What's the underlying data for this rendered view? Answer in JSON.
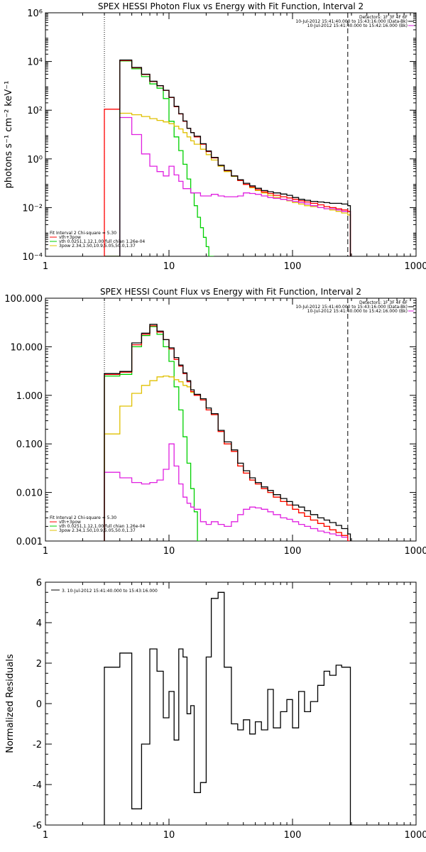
{
  "chart_data": [
    {
      "type": "line",
      "title": "SPEX HESSI Photon Flux vs Energy with Fit Function, Interval 2",
      "ylabel": "photons s⁻¹ cm⁻² keV⁻¹",
      "xlabel": "",
      "xscale": "log",
      "yscale": "log",
      "xlim": [
        1,
        1000
      ],
      "ylim": [
        0.0001,
        1000000
      ],
      "x_tick_labels": [
        "1",
        "10",
        "100",
        "1000"
      ],
      "y_tick_labels": [
        "10⁻⁴",
        "10⁻²",
        "10⁰",
        "10²",
        "10⁴",
        "10⁶"
      ],
      "vlines": [
        3,
        280
      ],
      "legend_top": [
        "Detectors: 1F 3F 4F 6F",
        "10-Jul-2012 15:41:40.000 to 15:43:16.000 (Data-Bk)",
        "10-Jul-2012 15:41:40.000 to 15:42:16.000 (Bk)"
      ],
      "legend_bottom_header": "Fit Interval 2   Chi-square = 5.30",
      "series": [
        {
          "name": "vth+3pow",
          "color": "#ff0000",
          "x": [
            3,
            4,
            5,
            6,
            7,
            8,
            9,
            10,
            11,
            12,
            13,
            14,
            15,
            16,
            18,
            20,
            22,
            25,
            28,
            32,
            36,
            40,
            45,
            50,
            56,
            63,
            70,
            80,
            90,
            100,
            112,
            125,
            140,
            160,
            180,
            200,
            225,
            250,
            280
          ],
          "y": [
            110,
            11000,
            5500,
            2900,
            1500,
            1000,
            650,
            330,
            140,
            70,
            35,
            18,
            12,
            8,
            4,
            2,
            1.1,
            0.55,
            0.33,
            0.2,
            0.13,
            0.09,
            0.07,
            0.055,
            0.044,
            0.038,
            0.032,
            0.028,
            0.025,
            0.022,
            0.019,
            0.017,
            0.015,
            0.013,
            0.011,
            0.01,
            0.009,
            0.008,
            0.007
          ]
        },
        {
          "name": "Data-Bk",
          "color": "#000000",
          "x": [
            3,
            4,
            5,
            6,
            7,
            8,
            9,
            10,
            11,
            12,
            13,
            14,
            15,
            16,
            18,
            20,
            22,
            25,
            28,
            32,
            36,
            40,
            45,
            50,
            56,
            63,
            70,
            80,
            90,
            100,
            112,
            125,
            140,
            160,
            180,
            200,
            225,
            250,
            280
          ],
          "y": [
            0.0001,
            11500,
            5700,
            3000,
            1550,
            1020,
            660,
            340,
            145,
            72,
            36,
            18,
            12,
            8.5,
            4.2,
            2.1,
            1.15,
            0.55,
            0.34,
            0.2,
            0.14,
            0.1,
            0.078,
            0.062,
            0.05,
            0.045,
            0.04,
            0.036,
            0.032,
            0.026,
            0.022,
            0.02,
            0.018,
            0.017,
            0.016,
            0.015,
            0.015,
            0.014,
            0.012
          ]
        },
        {
          "name": "vth 0.0251,1.12,1.00  full chian 1.26e-04",
          "color": "#00d000",
          "x": [
            3,
            4,
            5,
            6,
            7,
            8,
            9,
            10,
            11,
            12,
            13,
            14,
            15,
            16,
            17,
            18,
            19,
            20,
            21,
            22
          ],
          "y": [
            0.0001,
            10500,
            5000,
            2400,
            1200,
            800,
            300,
            35,
            8,
            2.2,
            0.6,
            0.15,
            0.04,
            0.012,
            0.004,
            0.0015,
            0.0006,
            0.00025,
            0.0001,
            0.0001
          ]
        },
        {
          "name": "3pow 2.34,1.50,10.9,5.05,50.0,1.37",
          "color": "#e0c000",
          "x": [
            3,
            4,
            5,
            6,
            7,
            8,
            9,
            10,
            11,
            12,
            13,
            14,
            15,
            16,
            18,
            20,
            22,
            25,
            28,
            32,
            36,
            40,
            45,
            50,
            56,
            63,
            70,
            80,
            90,
            100,
            112,
            125,
            140,
            160,
            180,
            200,
            225,
            250,
            280
          ],
          "y": [
            0.0001,
            75,
            65,
            55,
            45,
            38,
            33,
            28,
            22,
            17,
            12,
            8,
            5.5,
            4,
            2.5,
            1.5,
            0.9,
            0.5,
            0.3,
            0.19,
            0.13,
            0.09,
            0.065,
            0.05,
            0.04,
            0.032,
            0.026,
            0.022,
            0.019,
            0.016,
            0.014,
            0.012,
            0.011,
            0.01,
            0.009,
            0.008,
            0.007,
            0.006,
            0.005
          ]
        },
        {
          "name": "Bk",
          "color": "#e020e0",
          "x": [
            4,
            5,
            6,
            7,
            8,
            9,
            10,
            11,
            12,
            13,
            14,
            15,
            16,
            18,
            20,
            22,
            25,
            28,
            32,
            36,
            40,
            45,
            50,
            56,
            63,
            70,
            80,
            90,
            100,
            112,
            125,
            140,
            160,
            180,
            200,
            225,
            250,
            280
          ],
          "y": [
            50,
            10,
            1.6,
            0.5,
            0.3,
            0.2,
            0.5,
            0.22,
            0.12,
            0.06,
            0.06,
            0.04,
            0.04,
            0.03,
            0.03,
            0.035,
            0.03,
            0.028,
            0.028,
            0.03,
            0.04,
            0.038,
            0.035,
            0.03,
            0.026,
            0.024,
            0.022,
            0.02,
            0.018,
            0.016,
            0.014,
            0.012,
            0.01,
            0.009,
            0.009,
            0.008,
            0.007,
            0.007
          ]
        }
      ]
    },
    {
      "type": "line",
      "title": "SPEX HESSI Count Flux vs Energy with Fit Function, Interval 2",
      "ylabel": "",
      "xlabel": "",
      "xscale": "log",
      "yscale": "log",
      "xlim": [
        1,
        1000
      ],
      "ylim": [
        0.001,
        100
      ],
      "x_tick_labels": [
        "1",
        "10",
        "100",
        "1000"
      ],
      "y_tick_labels": [
        "0.001",
        "0.010",
        "0.100",
        "1.000",
        "10.000",
        "100.000"
      ],
      "vlines": [
        3,
        280
      ],
      "legend_top": [
        "Detectors: 1F 3F 4F 6F",
        "10-Jul-2012 15:41:40.000 to 15:43:16.000 (Data-Bk)",
        "10-Jul-2012 15:41:40.000 to 15:42:16.000 (Bk)"
      ],
      "legend_bottom_header": "Fit Interval 2   Chi-square = 5.30",
      "series": [
        {
          "name": "vth+3pow",
          "color": "#ff0000",
          "x": [
            3,
            4,
            5,
            6,
            7,
            8,
            9,
            10,
            11,
            12,
            13,
            14,
            15,
            16,
            18,
            20,
            22,
            25,
            28,
            32,
            36,
            40,
            45,
            50,
            56,
            63,
            70,
            80,
            90,
            100,
            112,
            125,
            140,
            160,
            180,
            200,
            225,
            250,
            280
          ],
          "y": [
            2.7,
            3.0,
            11,
            18,
            27,
            20,
            14,
            9,
            5.5,
            4.0,
            2.8,
            1.9,
            1.2,
            1.0,
            0.8,
            0.5,
            0.4,
            0.18,
            0.1,
            0.07,
            0.035,
            0.025,
            0.018,
            0.015,
            0.012,
            0.01,
            0.008,
            0.0065,
            0.0055,
            0.0045,
            0.0038,
            0.0032,
            0.0027,
            0.0023,
            0.002,
            0.0017,
            0.0015,
            0.0013,
            0.001
          ]
        },
        {
          "name": "Data-Bk",
          "color": "#000000",
          "x": [
            3,
            4,
            5,
            6,
            7,
            8,
            9,
            10,
            11,
            12,
            13,
            14,
            15,
            16,
            18,
            20,
            22,
            25,
            28,
            32,
            36,
            40,
            45,
            50,
            56,
            63,
            70,
            80,
            90,
            100,
            112,
            125,
            140,
            160,
            180,
            200,
            225,
            250,
            280
          ],
          "y": [
            2.8,
            3.1,
            12,
            19,
            29,
            21,
            14,
            9.5,
            6,
            4.2,
            2.9,
            2.0,
            1.3,
            1.05,
            0.85,
            0.55,
            0.42,
            0.19,
            0.11,
            0.075,
            0.04,
            0.028,
            0.02,
            0.016,
            0.013,
            0.011,
            0.009,
            0.0075,
            0.0065,
            0.0055,
            0.005,
            0.0042,
            0.0035,
            0.003,
            0.0027,
            0.0024,
            0.0021,
            0.0018,
            0.0014
          ]
        },
        {
          "name": "vth 0.0251,1.12,1.00  full chian 1.26e-04",
          "color": "#00d000",
          "x": [
            3,
            4,
            5,
            6,
            7,
            8,
            9,
            10,
            11,
            12,
            13,
            14,
            15,
            16,
            17
          ],
          "y": [
            2.5,
            2.7,
            10,
            17,
            26,
            18,
            10,
            5,
            1.5,
            0.5,
            0.14,
            0.04,
            0.012,
            0.004,
            0.001
          ]
        },
        {
          "name": "3pow 2.34,1.50,10.9,5.05,50.0,1.37",
          "color": "#e0c000",
          "x": [
            3,
            4,
            5,
            6,
            7,
            8,
            9,
            10,
            11,
            12,
            13,
            14,
            15,
            16,
            18,
            20,
            22,
            25,
            28,
            32,
            36,
            40,
            45,
            50,
            56,
            63,
            70,
            80,
            90,
            100,
            112,
            125,
            140,
            160,
            180,
            200,
            225,
            250,
            280
          ],
          "y": [
            0.16,
            0.6,
            1.1,
            1.6,
            2.0,
            2.4,
            2.5,
            2.4,
            2.1,
            1.9,
            1.6,
            1.5,
            1.15,
            1.0,
            0.8,
            0.5,
            0.4,
            0.18,
            0.1,
            0.07,
            0.035,
            0.025,
            0.018,
            0.015,
            0.012,
            0.01,
            0.008,
            0.0065,
            0.0055,
            0.0045,
            0.0038,
            0.0032,
            0.0027,
            0.0023,
            0.002,
            0.0017,
            0.0015,
            0.0013,
            0.001
          ]
        },
        {
          "name": "Bk",
          "color": "#e020e0",
          "x": [
            3,
            4,
            5,
            6,
            7,
            8,
            9,
            10,
            11,
            12,
            13,
            14,
            15,
            16,
            18,
            20,
            22,
            25,
            28,
            32,
            36,
            40,
            45,
            50,
            56,
            63,
            70,
            80,
            90,
            100,
            112,
            125,
            140,
            160,
            180,
            200,
            225,
            250,
            280
          ],
          "y": [
            0.026,
            0.02,
            0.016,
            0.015,
            0.016,
            0.018,
            0.03,
            0.1,
            0.035,
            0.015,
            0.008,
            0.006,
            0.005,
            0.0045,
            0.0025,
            0.0022,
            0.0025,
            0.0022,
            0.002,
            0.0025,
            0.0035,
            0.0045,
            0.005,
            0.0048,
            0.0045,
            0.004,
            0.0035,
            0.003,
            0.0028,
            0.0025,
            0.0022,
            0.002,
            0.0018,
            0.0016,
            0.0015,
            0.0014,
            0.0013,
            0.0012,
            0.001
          ]
        }
      ]
    },
    {
      "type": "line",
      "title": "",
      "ylabel": "Normalized Residuals",
      "xlabel": "",
      "xscale": "log",
      "yscale": "linear",
      "xlim": [
        1,
        1000
      ],
      "ylim": [
        -6,
        6
      ],
      "x_tick_labels": [
        "1",
        "10",
        "100",
        "1000"
      ],
      "y_tick_labels": [
        "-6",
        "-4",
        "-2",
        "0",
        "2",
        "4",
        "6"
      ],
      "legend": "3. 10-Jul-2012 15:41:40.000 to 15:43:16.000",
      "series": [
        {
          "name": "residuals",
          "color": "#000000",
          "x": [
            3,
            4,
            5,
            6,
            7,
            8,
            9,
            10,
            11,
            12,
            13,
            14,
            15,
            16,
            18,
            20,
            22,
            25,
            28,
            32,
            36,
            40,
            45,
            50,
            56,
            63,
            70,
            80,
            90,
            100,
            112,
            125,
            140,
            160,
            180,
            200,
            225,
            250,
            280
          ],
          "y": [
            1.8,
            2.5,
            -5.2,
            -2.0,
            2.7,
            1.6,
            -0.7,
            0.6,
            -1.8,
            2.7,
            2.3,
            -0.5,
            -0.1,
            -4.4,
            -3.9,
            2.3,
            5.2,
            5.5,
            1.8,
            -1.0,
            -1.3,
            -0.8,
            -1.5,
            -0.9,
            -1.3,
            0.7,
            -1.2,
            -0.4,
            0.2,
            -1.2,
            0.6,
            -0.4,
            0.1,
            0.9,
            1.6,
            1.4,
            1.9,
            1.8,
            1.8
          ]
        }
      ]
    }
  ]
}
